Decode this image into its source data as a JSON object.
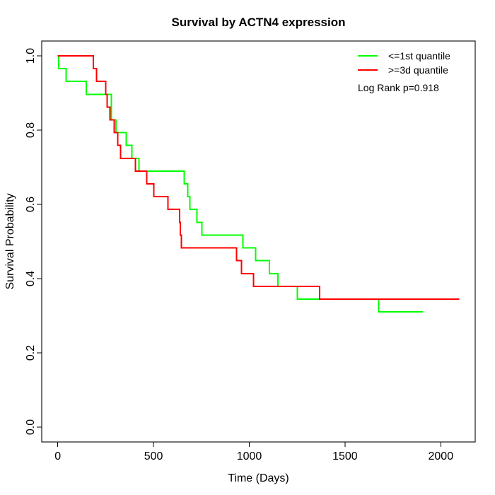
{
  "title": "Survival by ACTN4 expression",
  "legend": {
    "items": [
      {
        "label": "<=1st quantile",
        "color": "#00ff00"
      },
      {
        "label": ">=3d quantile",
        "color": "#ff0000"
      }
    ],
    "annotation": "Log Rank p=0.918"
  },
  "chart_data": {
    "type": "line",
    "subtype": "kaplan-meier-step",
    "title": "Survival by ACTN4 expression",
    "xlabel": "Time (Days)",
    "ylabel": "Survival Probability",
    "xlim": [
      0,
      2096
    ],
    "ylim": [
      0,
      1
    ],
    "grid": false,
    "legend_position": "top-right",
    "x_ticks": [
      0,
      500,
      1000,
      1500,
      2000
    ],
    "x_tick_labels": [
      "0",
      "500",
      "1000",
      "1500",
      "2000"
    ],
    "y_ticks": [
      0.0,
      0.2,
      0.4,
      0.6,
      0.8,
      1.0
    ],
    "y_tick_labels": [
      "0.0",
      "0.2",
      "0.4",
      "0.6",
      "0.8",
      "1.0"
    ],
    "series": [
      {
        "name": "<=1st quantile",
        "color": "#00ff00",
        "start": [
          0,
          1.0
        ],
        "steps": [
          [
            5,
            0.9655
          ],
          [
            44,
            0.931
          ],
          [
            148,
            0.8966
          ],
          [
            280,
            0.8276
          ],
          [
            303,
            0.7931
          ],
          [
            358,
            0.7586
          ],
          [
            387,
            0.7241
          ],
          [
            424,
            0.6897
          ],
          [
            660,
            0.6552
          ],
          [
            679,
            0.6207
          ],
          [
            690,
            0.5862
          ],
          [
            727,
            0.5517
          ],
          [
            753,
            0.5172
          ],
          [
            967,
            0.4828
          ],
          [
            1033,
            0.4483
          ],
          [
            1106,
            0.4138
          ],
          [
            1150,
            0.3793
          ],
          [
            1251,
            0.3448
          ],
          [
            1675,
            0.3103
          ]
        ],
        "end_time": 1908
      },
      {
        "name": ">=3d quantile",
        "color": "#ff0000",
        "start": [
          0,
          1.0
        ],
        "steps": [
          [
            185,
            0.9655
          ],
          [
            203,
            0.931
          ],
          [
            251,
            0.8966
          ],
          [
            258,
            0.8621
          ],
          [
            273,
            0.8276
          ],
          [
            295,
            0.7931
          ],
          [
            314,
            0.7586
          ],
          [
            328,
            0.7241
          ],
          [
            406,
            0.6897
          ],
          [
            465,
            0.6552
          ],
          [
            502,
            0.6207
          ],
          [
            576,
            0.5862
          ],
          [
            636,
            0.5517
          ],
          [
            640,
            0.5172
          ],
          [
            645,
            0.4828
          ],
          [
            933,
            0.4483
          ],
          [
            959,
            0.4138
          ],
          [
            1023,
            0.3793
          ],
          [
            1368,
            0.3448
          ]
        ],
        "end_time": 2096
      }
    ]
  }
}
